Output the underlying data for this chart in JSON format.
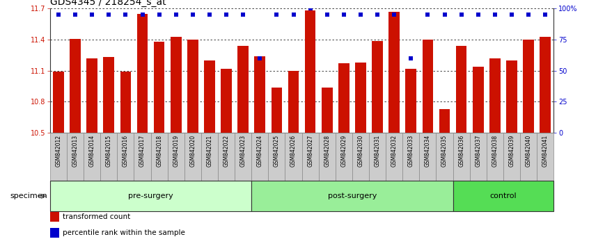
{
  "title": "GDS4345 / 218254_s_at",
  "samples": [
    "GSM842012",
    "GSM842013",
    "GSM842014",
    "GSM842015",
    "GSM842016",
    "GSM842017",
    "GSM842018",
    "GSM842019",
    "GSM842020",
    "GSM842021",
    "GSM842022",
    "GSM842023",
    "GSM842024",
    "GSM842025",
    "GSM842026",
    "GSM842027",
    "GSM842028",
    "GSM842029",
    "GSM842030",
    "GSM842031",
    "GSM842032",
    "GSM842033",
    "GSM842034",
    "GSM842035",
    "GSM842036",
    "GSM842037",
    "GSM842038",
    "GSM842039",
    "GSM842040",
    "GSM842041"
  ],
  "bar_values": [
    11.09,
    11.41,
    11.22,
    11.23,
    11.09,
    11.65,
    11.38,
    11.43,
    11.4,
    11.2,
    11.12,
    11.34,
    11.24,
    10.94,
    11.1,
    11.68,
    10.94,
    11.17,
    11.18,
    11.39,
    11.67,
    11.12,
    11.4,
    10.73,
    11.34,
    11.14,
    11.22,
    11.2,
    11.4,
    11.43
  ],
  "percentile_values": [
    95,
    95,
    95,
    95,
    95,
    95,
    95,
    95,
    95,
    95,
    95,
    95,
    60,
    95,
    95,
    100,
    95,
    95,
    95,
    95,
    95,
    60,
    95,
    95,
    95,
    95,
    95,
    95,
    95,
    95
  ],
  "bar_color": "#cc1100",
  "dot_color": "#0000cc",
  "ylim_left": [
    10.5,
    11.7
  ],
  "ylim_right": [
    0,
    100
  ],
  "yticks_left": [
    10.5,
    10.8,
    11.1,
    11.4,
    11.7
  ],
  "yticks_right": [
    0,
    25,
    50,
    75,
    100
  ],
  "ytick_labels_right": [
    "0",
    "25",
    "50",
    "75",
    "100%"
  ],
  "groups": [
    {
      "label": "pre-surgery",
      "start": 0,
      "end": 12,
      "color": "#ccffcc"
    },
    {
      "label": "post-surgery",
      "start": 12,
      "end": 24,
      "color": "#99ee99"
    },
    {
      "label": "control",
      "start": 24,
      "end": 30,
      "color": "#55dd55"
    }
  ],
  "specimen_label": "specimen",
  "legend_items": [
    {
      "label": "transformed count",
      "color": "#cc1100"
    },
    {
      "label": "percentile rank within the sample",
      "color": "#0000cc"
    }
  ],
  "bg_color": "#ffffff",
  "xtick_bg": "#cccccc",
  "xtick_border": "#888888",
  "title_fontsize": 10,
  "axis_fontsize": 7,
  "bar_width": 0.65
}
